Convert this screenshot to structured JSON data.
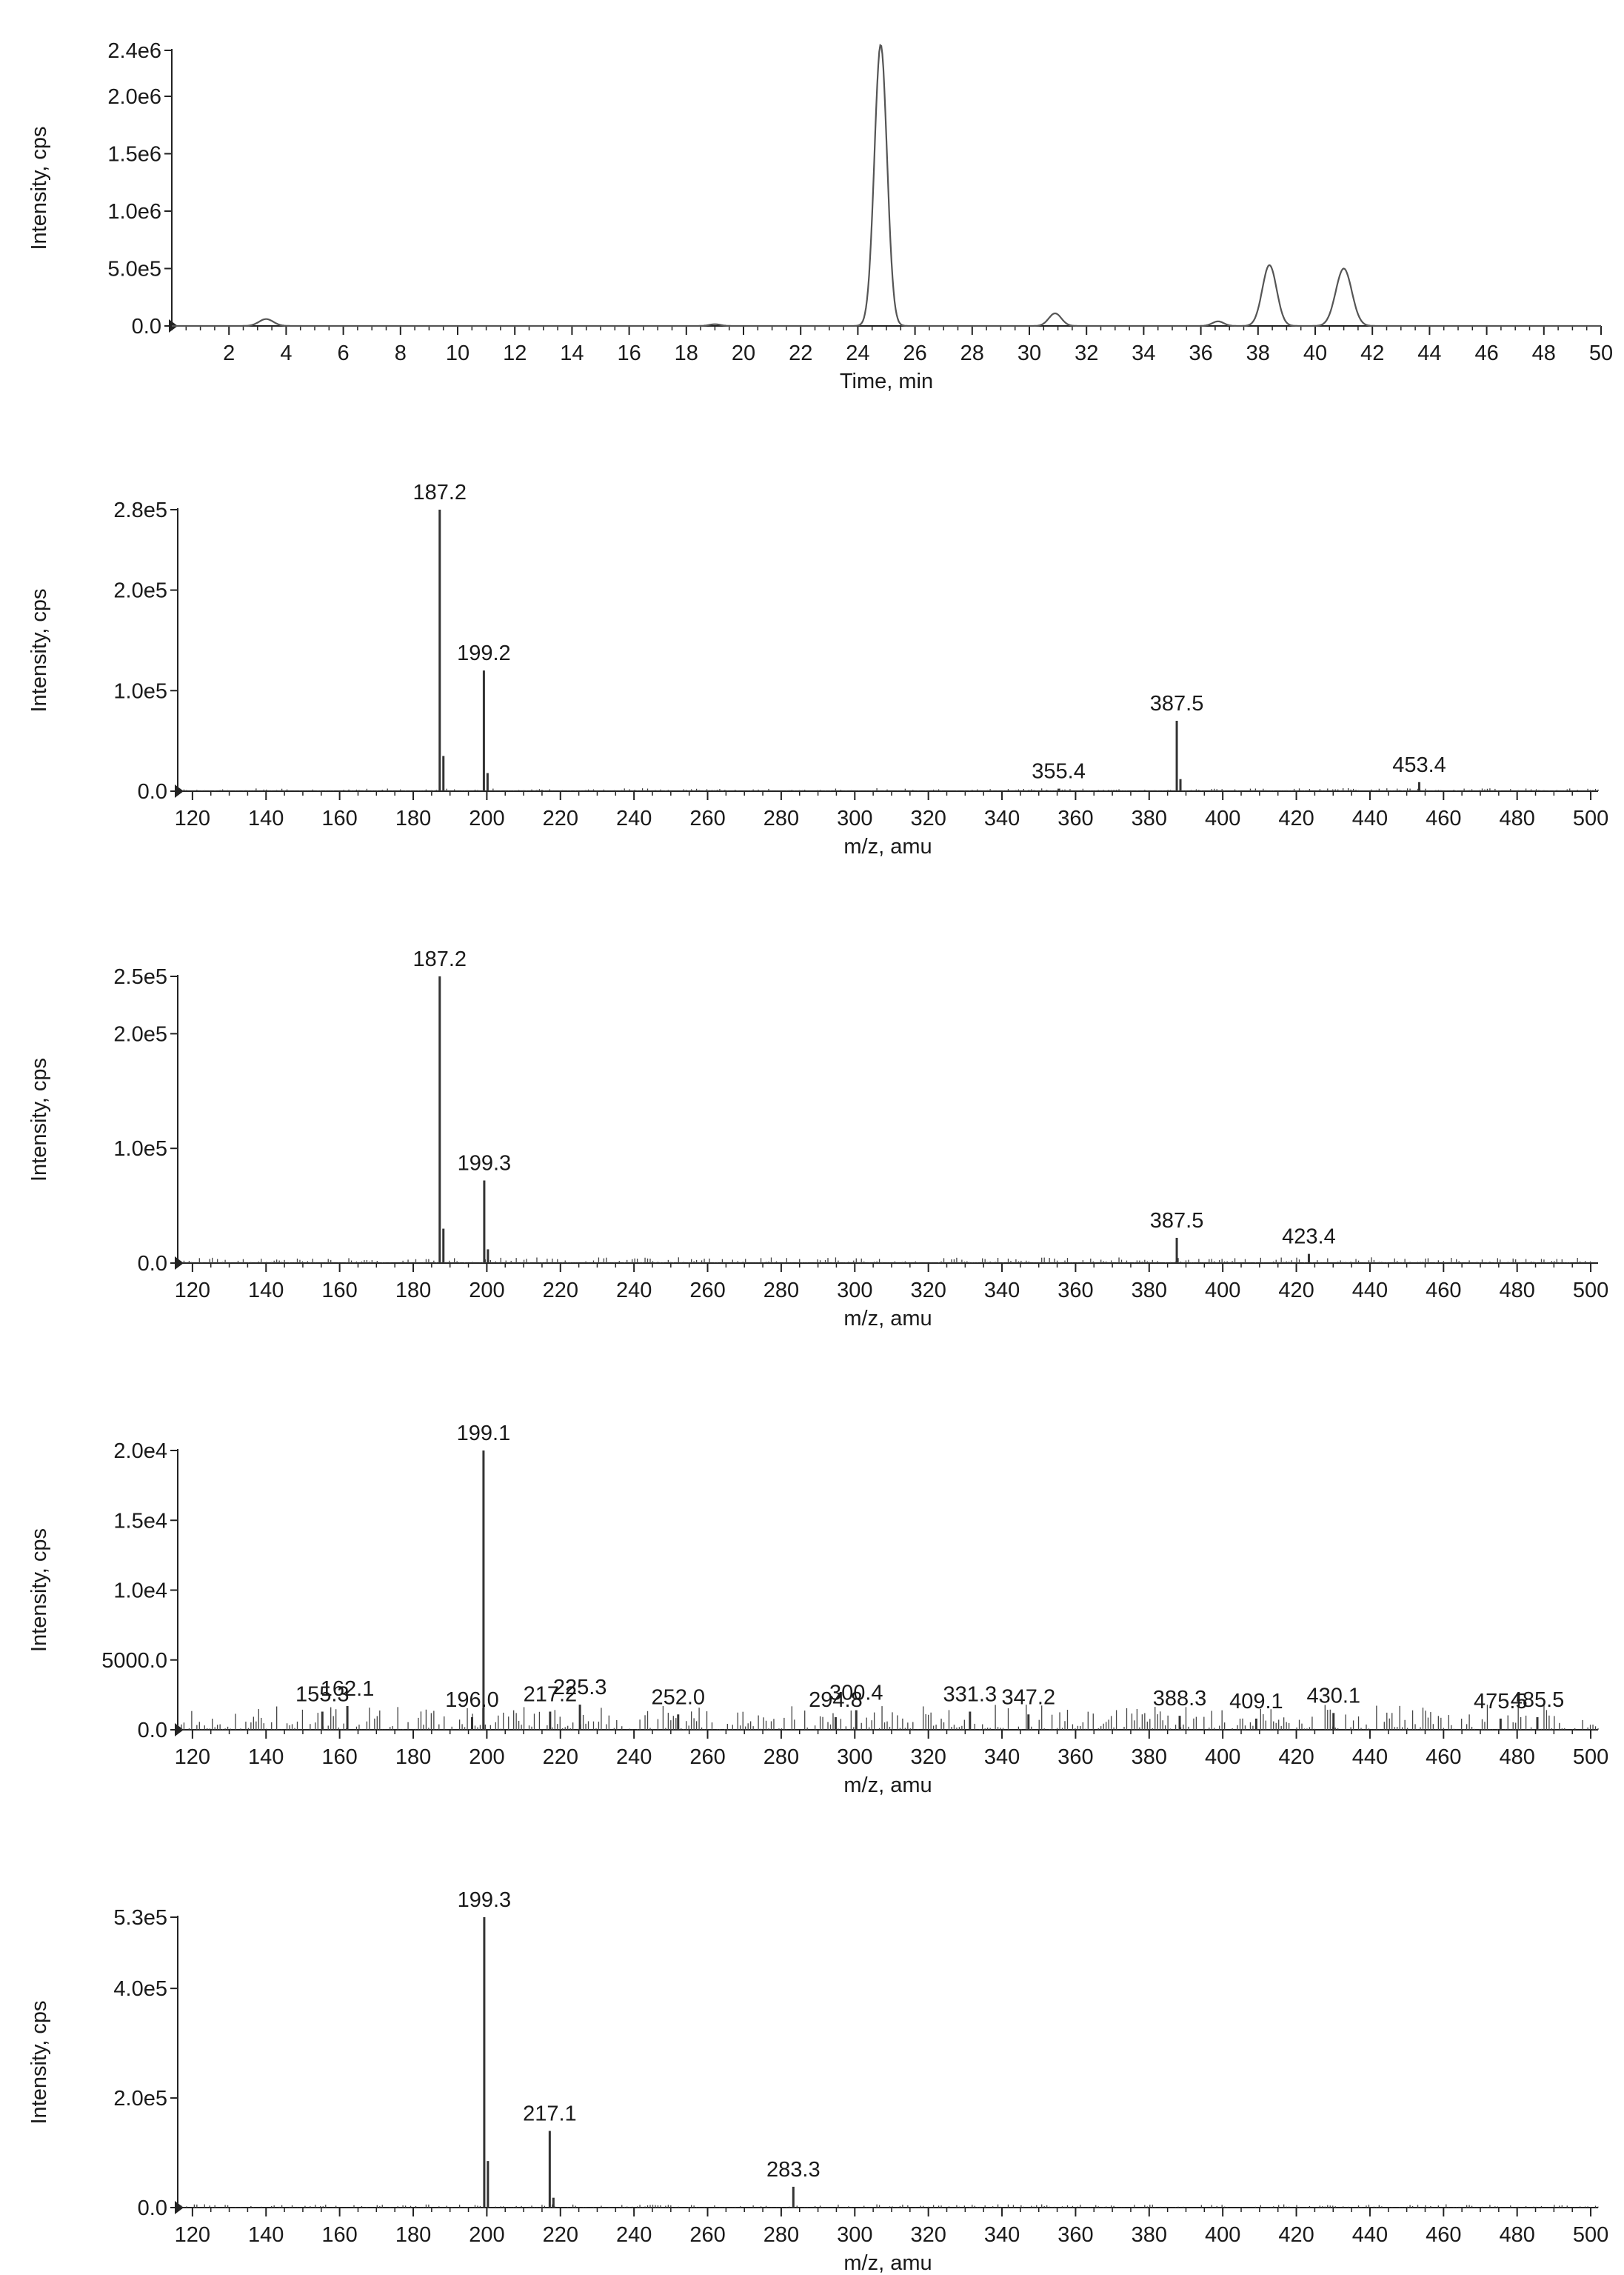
{
  "chart_data": [
    {
      "type": "line",
      "ylabel": "Intensity, cps",
      "xlabel": "Time, min",
      "xlim": [
        0,
        50
      ],
      "ylim": [
        0,
        2400000
      ],
      "y_ticks": [
        "0.0",
        "5.0e5",
        "1.0e6",
        "1.5e6",
        "2.0e6",
        "2.4e6"
      ],
      "y_tick_values": [
        0,
        500000,
        1000000,
        1500000,
        2000000,
        2400000
      ],
      "x_ticks": [
        "2",
        "4",
        "6",
        "8",
        "10",
        "12",
        "14",
        "16",
        "18",
        "20",
        "22",
        "24",
        "26",
        "28",
        "30",
        "32",
        "34",
        "36",
        "38",
        "40",
        "42",
        "44",
        "46",
        "48",
        "50"
      ],
      "x_tick_values": [
        2,
        4,
        6,
        8,
        10,
        12,
        14,
        16,
        18,
        20,
        22,
        24,
        26,
        28,
        30,
        32,
        34,
        36,
        38,
        40,
        42,
        44,
        46,
        48,
        50
      ],
      "grid": false,
      "peaks": [
        {
          "x": 3.3,
          "y": 60000,
          "w": 0.25
        },
        {
          "x": 19.0,
          "y": 15000,
          "w": 0.2
        },
        {
          "x": 24.8,
          "y": 2450000,
          "w": 0.22
        },
        {
          "x": 30.9,
          "y": 110000,
          "w": 0.22
        },
        {
          "x": 36.6,
          "y": 40000,
          "w": 0.2
        },
        {
          "x": 38.4,
          "y": 530000,
          "w": 0.25
        },
        {
          "x": 41.0,
          "y": 500000,
          "w": 0.28
        }
      ]
    },
    {
      "type": "bar",
      "ylabel": "Intensity, cps",
      "xlabel": "m/z, amu",
      "xlim": [
        116,
        502
      ],
      "ylim": [
        0,
        280000
      ],
      "y_ticks": [
        "0.0",
        "1.0e5",
        "2.0e5",
        "2.8e5"
      ],
      "y_tick_values": [
        0,
        100000,
        200000,
        280000
      ],
      "x_ticks": [
        "120",
        "140",
        "160",
        "180",
        "200",
        "220",
        "240",
        "260",
        "280",
        "300",
        "320",
        "340",
        "360",
        "380",
        "400",
        "420",
        "440",
        "460",
        "480",
        "500"
      ],
      "x_tick_values": [
        120,
        140,
        160,
        180,
        200,
        220,
        240,
        260,
        280,
        300,
        320,
        340,
        360,
        380,
        400,
        420,
        440,
        460,
        480,
        500
      ],
      "grid": false,
      "peaks": [
        {
          "x": 187.2,
          "y": 280000,
          "label": "187.2"
        },
        {
          "x": 188.2,
          "y": 35000
        },
        {
          "x": 199.2,
          "y": 120000,
          "label": "199.2"
        },
        {
          "x": 200.2,
          "y": 18000
        },
        {
          "x": 355.4,
          "y": 2500,
          "label": "355.4"
        },
        {
          "x": 387.5,
          "y": 70000,
          "label": "387.5"
        },
        {
          "x": 388.5,
          "y": 12000
        },
        {
          "x": 453.4,
          "y": 9000,
          "label": "453.4"
        }
      ],
      "noise_level": 1500
    },
    {
      "type": "bar",
      "ylabel": "Intensity, cps",
      "xlabel": "m/z, amu",
      "xlim": [
        116,
        502
      ],
      "ylim": [
        0,
        250000
      ],
      "y_ticks": [
        "0.0",
        "1.0e5",
        "2.0e5",
        "2.5e5"
      ],
      "y_tick_values": [
        0,
        100000,
        200000,
        250000
      ],
      "x_ticks": [
        "120",
        "140",
        "160",
        "180",
        "200",
        "220",
        "240",
        "260",
        "280",
        "300",
        "320",
        "340",
        "360",
        "380",
        "400",
        "420",
        "440",
        "460",
        "480",
        "500"
      ],
      "x_tick_values": [
        120,
        140,
        160,
        180,
        200,
        220,
        240,
        260,
        280,
        300,
        320,
        340,
        360,
        380,
        400,
        420,
        440,
        460,
        480,
        500
      ],
      "grid": false,
      "peaks": [
        {
          "x": 187.2,
          "y": 250000,
          "label": "187.2"
        },
        {
          "x": 188.2,
          "y": 30000
        },
        {
          "x": 199.3,
          "y": 72000,
          "label": "199.3"
        },
        {
          "x": 200.3,
          "y": 12000
        },
        {
          "x": 387.5,
          "y": 22000,
          "label": "387.5"
        },
        {
          "x": 423.4,
          "y": 8000,
          "label": "423.4"
        }
      ],
      "noise_level": 2500
    },
    {
      "type": "bar",
      "ylabel": "Intensity, cps",
      "xlabel": "m/z, amu",
      "xlim": [
        116,
        502
      ],
      "ylim": [
        0,
        20000
      ],
      "y_ticks": [
        "0.0",
        "5000.0",
        "1.0e4",
        "1.5e4",
        "2.0e4"
      ],
      "y_tick_values": [
        0,
        5000,
        10000,
        15000,
        20000
      ],
      "x_ticks": [
        "120",
        "140",
        "160",
        "180",
        "200",
        "220",
        "240",
        "260",
        "280",
        "300",
        "320",
        "340",
        "360",
        "380",
        "400",
        "420",
        "440",
        "460",
        "480",
        "500"
      ],
      "x_tick_values": [
        120,
        140,
        160,
        180,
        200,
        220,
        240,
        260,
        280,
        300,
        320,
        340,
        360,
        380,
        400,
        420,
        440,
        460,
        480,
        500
      ],
      "grid": false,
      "peaks": [
        {
          "x": 199.1,
          "y": 20000,
          "label": "199.1"
        },
        {
          "x": 155.3,
          "y": 1300,
          "label": "155.3"
        },
        {
          "x": 162.1,
          "y": 1700,
          "label": "162.1"
        },
        {
          "x": 196.0,
          "y": 900,
          "label": "196.0"
        },
        {
          "x": 217.2,
          "y": 1300,
          "label": "217.2"
        },
        {
          "x": 225.3,
          "y": 1800,
          "label": "225.3"
        },
        {
          "x": 252.0,
          "y": 1100,
          "label": "252.0"
        },
        {
          "x": 294.8,
          "y": 900,
          "label": "294.8"
        },
        {
          "x": 300.4,
          "y": 1400,
          "label": "300.4"
        },
        {
          "x": 331.3,
          "y": 1300,
          "label": "331.3"
        },
        {
          "x": 347.2,
          "y": 1100,
          "label": "347.2"
        },
        {
          "x": 388.3,
          "y": 1000,
          "label": "388.3"
        },
        {
          "x": 409.1,
          "y": 800,
          "label": "409.1"
        },
        {
          "x": 430.1,
          "y": 1200,
          "label": "430.1"
        },
        {
          "x": 475.5,
          "y": 800,
          "label": "475.5"
        },
        {
          "x": 485.5,
          "y": 900,
          "label": "485.5"
        }
      ],
      "noise_level": 900
    },
    {
      "type": "bar",
      "ylabel": "Intensity, cps",
      "xlabel": "m/z, amu",
      "xlim": [
        116,
        502
      ],
      "ylim": [
        0,
        530000
      ],
      "y_ticks": [
        "0.0",
        "2.0e5",
        "4.0e5",
        "5.3e5"
      ],
      "y_tick_values": [
        0,
        200000,
        400000,
        530000
      ],
      "x_ticks": [
        "120",
        "140",
        "160",
        "180",
        "200",
        "220",
        "240",
        "260",
        "280",
        "300",
        "320",
        "340",
        "360",
        "380",
        "400",
        "420",
        "440",
        "460",
        "480",
        "500"
      ],
      "x_tick_values": [
        120,
        140,
        160,
        180,
        200,
        220,
        240,
        260,
        280,
        300,
        320,
        340,
        360,
        380,
        400,
        420,
        440,
        460,
        480,
        500
      ],
      "grid": false,
      "peaks": [
        {
          "x": 199.3,
          "y": 530000,
          "label": "199.3"
        },
        {
          "x": 200.3,
          "y": 85000
        },
        {
          "x": 217.1,
          "y": 140000,
          "label": "217.1"
        },
        {
          "x": 218.1,
          "y": 18000
        },
        {
          "x": 283.3,
          "y": 38000,
          "label": "283.3"
        }
      ],
      "noise_level": 3000
    }
  ]
}
